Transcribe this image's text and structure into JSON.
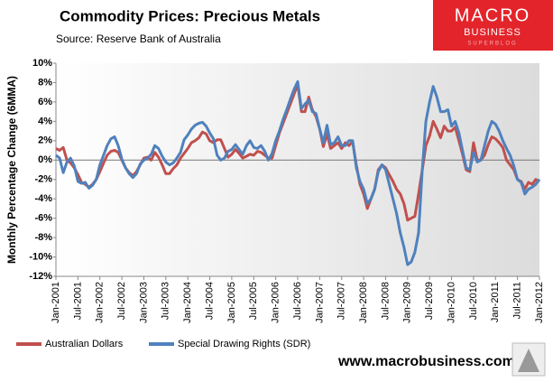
{
  "chart_data": {
    "type": "line",
    "title": "Commodity Prices: Precious Metals",
    "subtitle": "Source: Reserve Bank of Australia",
    "y_label": "Monthly Percentage Change (6MMA)",
    "logo": {
      "line1": "MACRO",
      "line2": "BUSINESS",
      "line3": "SUPERBLOG"
    },
    "footer": "www.macrobusiness.com.au",
    "ylim": [
      -12,
      10
    ],
    "yticks": [
      {
        "value": -12,
        "label": "-12%"
      },
      {
        "value": -10,
        "label": "-10%"
      },
      {
        "value": -8,
        "label": "-8%"
      },
      {
        "value": -6,
        "label": "-6%"
      },
      {
        "value": -4,
        "label": "-4%"
      },
      {
        "value": -2,
        "label": "-2%"
      },
      {
        "value": 0,
        "label": "0%"
      },
      {
        "value": 2,
        "label": "2%"
      },
      {
        "value": 4,
        "label": "4%"
      },
      {
        "value": 6,
        "label": "6%"
      },
      {
        "value": 8,
        "label": "8%"
      },
      {
        "value": 10,
        "label": "10%"
      }
    ],
    "categories": [
      "Jan-2001",
      null,
      null,
      null,
      null,
      null,
      "Jul-2001",
      null,
      null,
      null,
      null,
      null,
      "Jan-2002",
      null,
      null,
      null,
      null,
      null,
      "Jul-2002",
      null,
      null,
      null,
      null,
      null,
      "Jan-2003",
      null,
      null,
      null,
      null,
      null,
      "Jul-2003",
      null,
      null,
      null,
      null,
      null,
      "Jan-2004",
      null,
      null,
      null,
      null,
      null,
      "Jul-2004",
      null,
      null,
      null,
      null,
      null,
      "Jan-2005",
      null,
      null,
      null,
      null,
      null,
      "Jul-2005",
      null,
      null,
      null,
      null,
      null,
      "Jan-2006",
      null,
      null,
      null,
      null,
      null,
      "Jul-2006",
      null,
      null,
      null,
      null,
      null,
      "Jan-2007",
      null,
      null,
      null,
      null,
      null,
      "Jul-2007",
      null,
      null,
      null,
      null,
      null,
      "Jan-2008",
      null,
      null,
      null,
      null,
      null,
      "Jul-2008",
      null,
      null,
      null,
      null,
      null,
      "Jan-2009",
      null,
      null,
      null,
      null,
      null,
      "Jul-2009",
      null,
      null,
      null,
      null,
      null,
      "Jan-2010",
      null,
      null,
      null,
      null,
      null,
      "Jul-2010",
      null,
      null,
      null,
      null,
      null,
      "Jan-2011",
      null,
      null,
      null,
      null,
      null,
      "Jul-2011",
      null,
      null,
      null,
      null,
      null,
      "Jan-2012"
    ],
    "series": [
      {
        "name": "Australian Dollars",
        "color": "#c0504d",
        "values": [
          1.2,
          1.0,
          1.3,
          0,
          -0.3,
          -0.8,
          -1.5,
          -2.3,
          -2.5,
          -2.8,
          -2.5,
          -2.0,
          -1.2,
          -0.3,
          0.5,
          0.9,
          1.0,
          0.8,
          0.0,
          -0.8,
          -1.3,
          -1.6,
          -1.2,
          -0.5,
          0.2,
          0.3,
          0.0,
          0.8,
          0.3,
          -0.5,
          -1.4,
          -1.4,
          -0.9,
          -0.5,
          0.2,
          0.7,
          1.2,
          1.8,
          2.0,
          2.3,
          2.9,
          2.7,
          2.0,
          1.8,
          2.1,
          2.1,
          1.2,
          0.3,
          0.6,
          1.1,
          0.7,
          0.2,
          0.4,
          0.6,
          0.5,
          0.9,
          0.8,
          0.5,
          0.2,
          0.2,
          1.5,
          2.8,
          3.8,
          4.8,
          5.8,
          6.8,
          7.8,
          5.0,
          5.0,
          6.5,
          5.2,
          4.5,
          3.2,
          1.4,
          2.7,
          1.2,
          1.5,
          1.8,
          1.2,
          1.8,
          1.5,
          1.9,
          -0.5,
          -2.5,
          -3.5,
          -5.0,
          -4.0,
          -3.0,
          -1.0,
          -0.5,
          -0.8,
          -1.5,
          -2.2,
          -3.0,
          -3.5,
          -4.5,
          -6.2,
          -6.0,
          -5.8,
          -3.5,
          -1.0,
          1.5,
          2.5,
          4.0,
          3.2,
          2.3,
          3.5,
          3.0,
          3.0,
          3.4,
          2.0,
          0.6,
          -1.0,
          -1.2,
          1.8,
          0.0,
          0.0,
          0.5,
          1.6,
          2.4,
          2.2,
          1.8,
          1.3,
          0.0,
          -0.5,
          -1.0,
          -2.0,
          -2.2,
          -3.0,
          -2.3,
          -2.5,
          -2.0,
          -2.2
        ]
      },
      {
        "name": "Special Drawing Rights (SDR)",
        "color": "#4f81bd",
        "values": [
          0.5,
          0.2,
          -1.3,
          -0.2,
          0.2,
          -0.6,
          -2.2,
          -2.4,
          -2.3,
          -2.9,
          -2.6,
          -2.0,
          -0.5,
          0.5,
          1.5,
          2.2,
          2.4,
          1.5,
          0.1,
          -0.8,
          -1.4,
          -1.8,
          -1.4,
          -0.4,
          0.0,
          0.2,
          0.6,
          1.5,
          1.2,
          0.4,
          -0.2,
          -0.5,
          -0.3,
          0.2,
          0.8,
          2.1,
          2.6,
          3.2,
          3.6,
          3.8,
          3.9,
          3.5,
          2.8,
          2.2,
          0.5,
          0.0,
          0.2,
          0.9,
          1.1,
          1.6,
          1.1,
          0.6,
          1.5,
          2.0,
          1.3,
          1.2,
          1.5,
          0.9,
          0.0,
          0.7,
          2.0,
          3.0,
          4.2,
          5.2,
          6.3,
          7.3,
          8.1,
          5.3,
          5.8,
          6.2,
          5.0,
          4.8,
          3.2,
          1.8,
          3.6,
          1.6,
          1.8,
          2.4,
          1.5,
          1.5,
          2.0,
          2.0,
          -0.8,
          -2.2,
          -3.0,
          -4.5,
          -4.0,
          -3.0,
          -1.2,
          -0.5,
          -1.0,
          -2.5,
          -4.0,
          -5.5,
          -7.5,
          -9.0,
          -10.8,
          -10.5,
          -9.5,
          -7.5,
          -1.0,
          4.0,
          6.0,
          7.6,
          6.5,
          5.0,
          5.0,
          5.2,
          3.5,
          4.0,
          2.8,
          1.0,
          -0.8,
          -1.0,
          0.8,
          -0.2,
          0.0,
          1.5,
          3.0,
          4.0,
          3.7,
          3.0,
          2.0,
          1.2,
          0.5,
          -0.6,
          -2.0,
          -2.3,
          -3.5,
          -3.0,
          -2.8,
          -2.5,
          -2.0
        ]
      }
    ]
  }
}
